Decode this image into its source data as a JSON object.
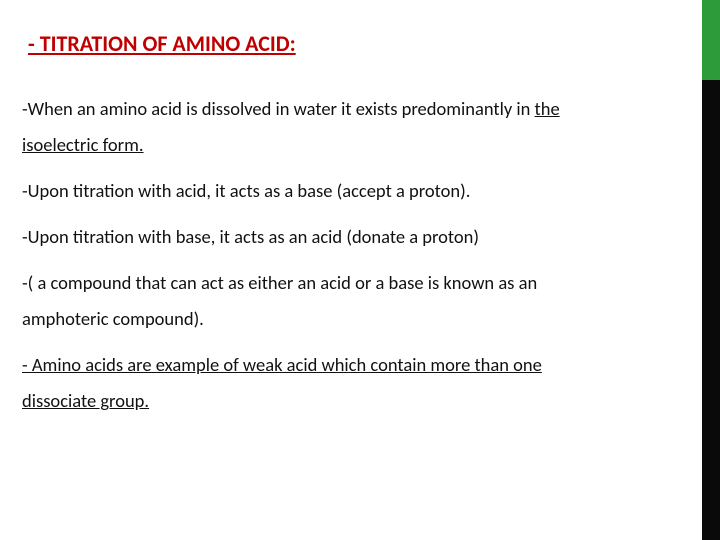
{
  "title": {
    "text": "- TITRATION OF AMINO ACID:",
    "color": "#c00000",
    "fontsize": 22
  },
  "body": {
    "fontsize": 18.5,
    "color": "#111111",
    "lines": [
      {
        "html": "-When an amino acid is dissolved in water it exists predominantly in <u>the</u>"
      },
      {
        "html": "<u>isoelectric form.</u>"
      },
      {
        "gap": true
      },
      {
        "html": "-Upon titration with acid, it acts as a base (accept a proton)."
      },
      {
        "gap": true
      },
      {
        "html": "-Upon titration with base, it acts as an acid (donate a proton)"
      },
      {
        "gap": true
      },
      {
        "html": "-( a compound that can act as either an acid or a base is known as an"
      },
      {
        "html": "amphoteric compound)."
      },
      {
        "gap": true
      },
      {
        "html": "<u>- Amino acids are example of weak acid which contain more than one</u>"
      },
      {
        "html": "<u>dissociate group.</u>"
      }
    ]
  },
  "accent": {
    "green": "#2e9b3a",
    "black": "#0a0a0a",
    "width": 18,
    "green_height": 80
  }
}
